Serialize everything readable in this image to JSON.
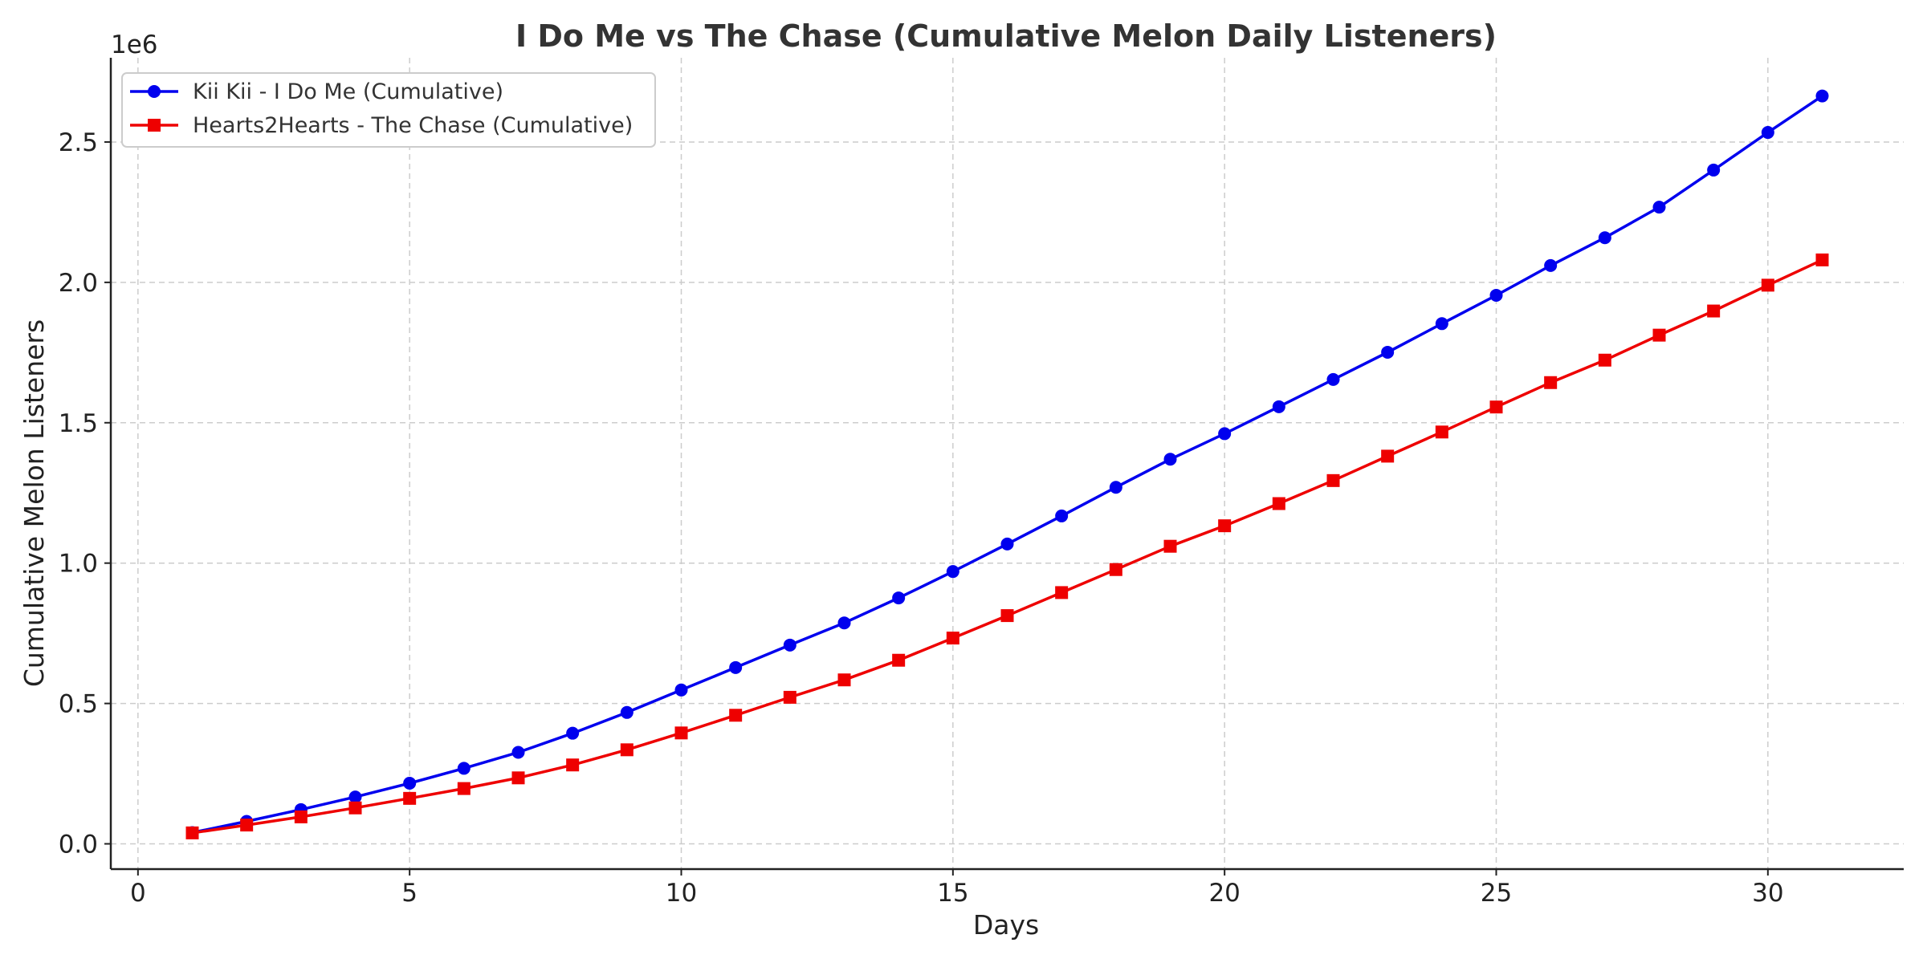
{
  "chart_data": {
    "type": "line",
    "title": "I Do Me vs The Chase (Cumulative Melon Daily Listeners)",
    "xlabel": "Days",
    "ylabel": "Cumulative Melon Listeners",
    "y_offset_label": "1e6",
    "xlim": [
      -0.5,
      32.5
    ],
    "ylim": [
      -90000,
      2800000
    ],
    "x_ticks": [
      0,
      5,
      10,
      15,
      20,
      25,
      30
    ],
    "x_tick_labels": [
      "0",
      "5",
      "10",
      "15",
      "20",
      "25",
      "30"
    ],
    "y_ticks": [
      0,
      500000,
      1000000,
      1500000,
      2000000,
      2500000
    ],
    "y_tick_labels": [
      "0.0",
      "0.5",
      "1.0",
      "1.5",
      "2.0",
      "2.5"
    ],
    "grid": true,
    "legend_position": "top-left",
    "x": [
      1,
      2,
      3,
      4,
      5,
      6,
      7,
      8,
      9,
      10,
      11,
      12,
      13,
      14,
      15,
      16,
      17,
      18,
      19,
      20,
      21,
      22,
      23,
      24,
      25,
      26,
      27,
      28,
      29,
      30,
      31
    ],
    "series": [
      {
        "name": "Kii Kii - I Do Me (Cumulative)",
        "color": "#0000ee",
        "marker": "circle",
        "values": [
          40000,
          80000,
          122000,
          167000,
          216000,
          269000,
          326000,
          394000,
          468000,
          548000,
          628000,
          708000,
          787000,
          876000,
          970000,
          1068000,
          1168000,
          1270000,
          1370000,
          1461000,
          1557000,
          1654000,
          1751000,
          1853000,
          1954000,
          2060000,
          2159000,
          2268000,
          2400000,
          2534000,
          2664000
        ]
      },
      {
        "name": "Hearts2Hearts - The Chase (Cumulative)",
        "color": "#ee0000",
        "marker": "square",
        "values": [
          39000,
          67000,
          96000,
          128000,
          162000,
          197000,
          235000,
          281000,
          335000,
          395000,
          458000,
          522000,
          584000,
          654000,
          733000,
          813000,
          895000,
          977000,
          1060000,
          1133000,
          1212000,
          1294000,
          1381000,
          1467000,
          1556000,
          1643000,
          1723000,
          1812000,
          1898000,
          1990000,
          2080000
        ]
      }
    ]
  }
}
